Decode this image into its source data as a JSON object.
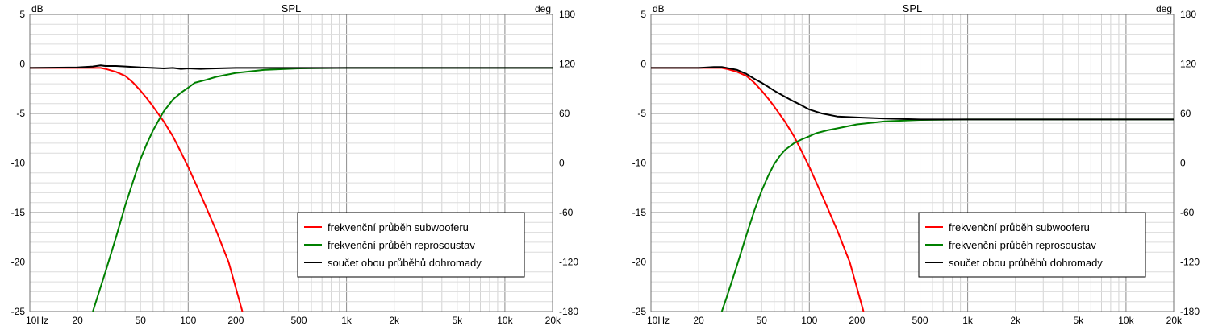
{
  "chart_data": [
    {
      "type": "line",
      "title": "SPL",
      "ylabel": "dB",
      "y2label": "deg",
      "xscale": "log",
      "xlim": [
        10,
        20000
      ],
      "ylim": [
        -25,
        5
      ],
      "y2lim": [
        -180,
        180
      ],
      "x_ticks": [
        10,
        20,
        50,
        100,
        200,
        500,
        1000,
        2000,
        5000,
        10000,
        20000
      ],
      "x_tick_labels": [
        "10Hz",
        "20",
        "50",
        "100",
        "200",
        "500",
        "1k",
        "2k",
        "5k",
        "10k",
        "20k"
      ],
      "y_ticks": [
        5,
        0,
        -5,
        -10,
        -15,
        -20,
        -25
      ],
      "y_tick_labels": [
        "5",
        "0",
        "-5",
        "-10",
        "-15",
        "-20",
        "-25"
      ],
      "y2_ticks": [
        180,
        120,
        60,
        0,
        -60,
        -120,
        -180
      ],
      "y2_tick_labels": [
        "180",
        "120",
        "60",
        "0",
        "-60",
        "-120",
        "-180"
      ],
      "grid": true,
      "legend_position": "bottom-right",
      "series": [
        {
          "name": "frekvenční průběh subwooferu",
          "color": "#ff0000",
          "x": [
            10,
            20,
            25,
            28,
            30,
            35,
            40,
            45,
            50,
            55,
            60,
            70,
            80,
            90,
            100,
            120,
            150,
            180,
            220
          ],
          "y": [
            -0.4,
            -0.4,
            -0.4,
            -0.4,
            -0.5,
            -0.8,
            -1.2,
            -1.9,
            -2.7,
            -3.5,
            -4.3,
            -5.8,
            -7.3,
            -8.9,
            -10.4,
            -13.2,
            -16.8,
            -20.0,
            -25.0
          ]
        },
        {
          "name": "frekvenční průběh reprosoustav",
          "color": "#008000",
          "x": [
            25,
            28,
            30,
            35,
            40,
            45,
            50,
            55,
            60,
            65,
            70,
            80,
            90,
            100,
            110,
            130,
            150,
            200,
            300,
            500,
            1000,
            20000
          ],
          "y": [
            -25.0,
            -22.5,
            -21.0,
            -17.5,
            -14.3,
            -11.8,
            -9.6,
            -8.0,
            -6.7,
            -5.7,
            -4.8,
            -3.6,
            -2.9,
            -2.4,
            -1.9,
            -1.6,
            -1.3,
            -0.9,
            -0.6,
            -0.45,
            -0.4,
            -0.4
          ]
        },
        {
          "name": "součet obou průběhů dohromady",
          "color": "#000000",
          "x": [
            10,
            20,
            25,
            28,
            30,
            35,
            40,
            50,
            60,
            70,
            80,
            90,
            100,
            120,
            150,
            200,
            300,
            500,
            1000,
            20000
          ],
          "y": [
            -0.4,
            -0.35,
            -0.25,
            -0.15,
            -0.2,
            -0.2,
            -0.25,
            -0.35,
            -0.4,
            -0.45,
            -0.4,
            -0.5,
            -0.45,
            -0.5,
            -0.45,
            -0.4,
            -0.4,
            -0.4,
            -0.4,
            -0.4
          ]
        }
      ]
    },
    {
      "type": "line",
      "title": "SPL",
      "ylabel": "dB",
      "y2label": "deg",
      "xscale": "log",
      "xlim": [
        10,
        20000
      ],
      "ylim": [
        -25,
        5
      ],
      "y2lim": [
        -180,
        180
      ],
      "x_ticks": [
        10,
        20,
        50,
        100,
        200,
        500,
        1000,
        2000,
        5000,
        10000,
        20000
      ],
      "x_tick_labels": [
        "10Hz",
        "20",
        "50",
        "100",
        "200",
        "500",
        "1k",
        "2k",
        "5k",
        "10k",
        "20k"
      ],
      "y_ticks": [
        5,
        0,
        -5,
        -10,
        -15,
        -20,
        -25
      ],
      "y_tick_labels": [
        "5",
        "0",
        "-5",
        "-10",
        "-15",
        "-20",
        "-25"
      ],
      "y2_ticks": [
        180,
        120,
        60,
        0,
        -60,
        -120,
        -180
      ],
      "y2_tick_labels": [
        "180",
        "120",
        "60",
        "0",
        "-60",
        "-120",
        "-180"
      ],
      "grid": true,
      "legend_position": "bottom-right",
      "series": [
        {
          "name": "frekvenční průběh subwooferu",
          "color": "#ff0000",
          "x": [
            10,
            20,
            25,
            28,
            30,
            35,
            40,
            45,
            50,
            55,
            60,
            70,
            80,
            90,
            100,
            120,
            150,
            180,
            220
          ],
          "y": [
            -0.4,
            -0.4,
            -0.4,
            -0.4,
            -0.5,
            -0.8,
            -1.2,
            -1.9,
            -2.7,
            -3.5,
            -4.3,
            -5.8,
            -7.3,
            -8.9,
            -10.4,
            -13.2,
            -16.8,
            -20.0,
            -25.0
          ]
        },
        {
          "name": "frekvenční průběh reprosoustav",
          "color": "#008000",
          "x": [
            28,
            30,
            35,
            40,
            45,
            50,
            55,
            60,
            65,
            70,
            80,
            90,
            100,
            110,
            130,
            150,
            200,
            300,
            500,
            1000,
            20000
          ],
          "y": [
            -25.0,
            -23.6,
            -20.3,
            -17.3,
            -14.8,
            -12.8,
            -11.3,
            -10.1,
            -9.3,
            -8.7,
            -8.0,
            -7.6,
            -7.3,
            -7.0,
            -6.7,
            -6.5,
            -6.1,
            -5.8,
            -5.65,
            -5.6,
            -5.6
          ]
        },
        {
          "name": "součet obou průběhů dohromady",
          "color": "#000000",
          "x": [
            10,
            20,
            25,
            28,
            30,
            35,
            40,
            45,
            50,
            55,
            60,
            70,
            80,
            90,
            100,
            120,
            150,
            200,
            300,
            500,
            1000,
            20000
          ],
          "y": [
            -0.4,
            -0.4,
            -0.3,
            -0.3,
            -0.4,
            -0.6,
            -1.0,
            -1.5,
            -1.9,
            -2.3,
            -2.7,
            -3.3,
            -3.8,
            -4.2,
            -4.6,
            -5.0,
            -5.3,
            -5.4,
            -5.5,
            -5.6,
            -5.6,
            -5.6
          ]
        }
      ]
    }
  ]
}
